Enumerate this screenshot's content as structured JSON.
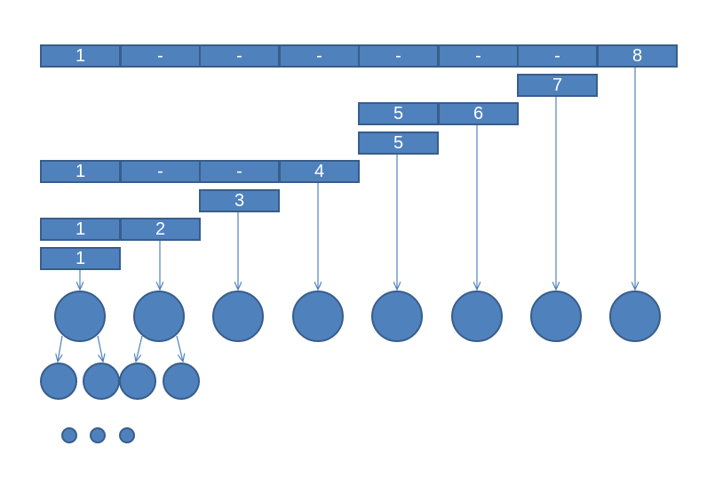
{
  "rows": [
    {
      "name": "row-top",
      "cells": [
        "1",
        "-",
        "-",
        "-",
        "-",
        "-",
        "-",
        "8"
      ]
    },
    {
      "name": "row-7",
      "cells": [
        "7"
      ]
    },
    {
      "name": "row-56",
      "cells": [
        "5",
        "6"
      ]
    },
    {
      "name": "row-5",
      "cells": [
        "5"
      ]
    },
    {
      "name": "row-1--4",
      "cells": [
        "1",
        "-",
        "-",
        "4"
      ]
    },
    {
      "name": "row-3",
      "cells": [
        "3"
      ]
    },
    {
      "name": "row-12",
      "cells": [
        "1",
        "2"
      ]
    },
    {
      "name": "row-1",
      "cells": [
        "1"
      ]
    }
  ],
  "colors": {
    "fill": "#4f81bd",
    "stroke": "#385d8a",
    "text": "#ffffff",
    "arrow": "#4f81bd"
  }
}
